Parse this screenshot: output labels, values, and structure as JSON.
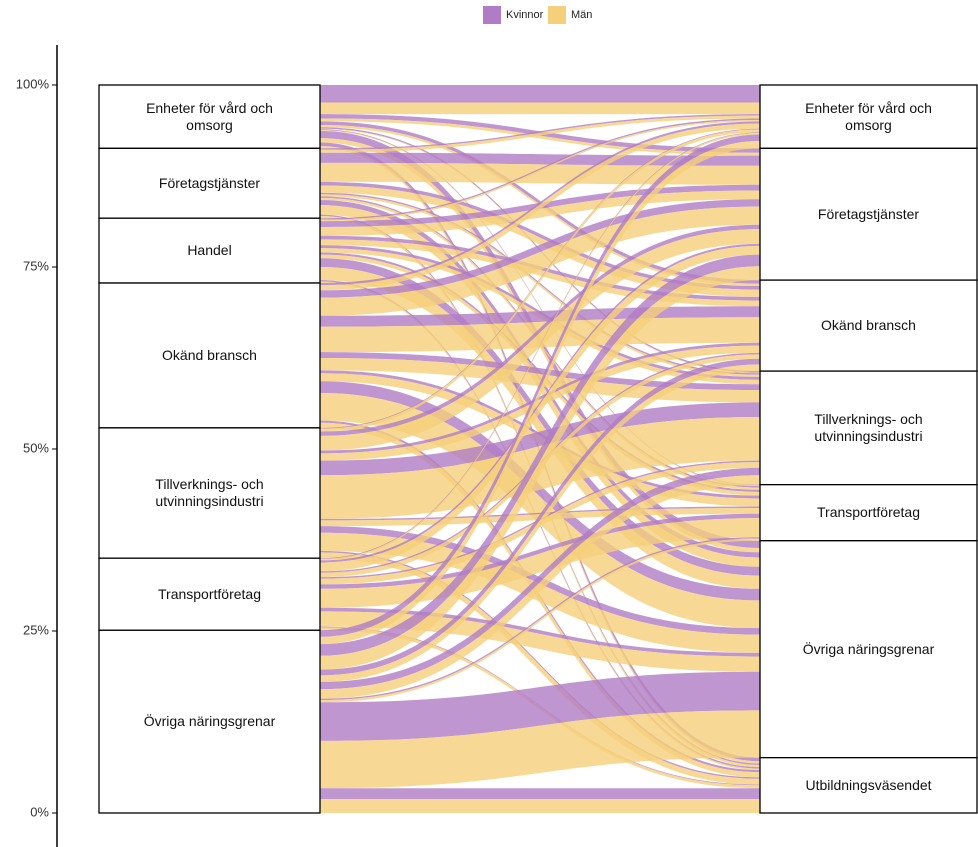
{
  "chart_data": {
    "type": "alluvial",
    "legend": "top",
    "ylim": [
      0,
      100
    ],
    "yticks": [
      {
        "value": 0,
        "label": "0%"
      },
      {
        "value": 25,
        "label": "25%"
      },
      {
        "value": 50,
        "label": "50%"
      },
      {
        "value": 75,
        "label": "75%"
      },
      {
        "value": 100,
        "label": "100%"
      }
    ],
    "left_strata": {
      "names": [
        "Enheter för vård och omsorg",
        "Företagstjänster",
        "Handel",
        "Okänd bransch",
        "Tillverknings- och utvinningsindustri",
        "Transportföretag",
        "Övriga näringsgrenar"
      ],
      "values": [
        8.7,
        9.6,
        8.9,
        19.9,
        17.9,
        9.9,
        25.1
      ]
    },
    "right_strata": {
      "names": [
        "Enheter för vård och omsorg",
        "Företagstjänster",
        "Okänd bransch",
        "Tillverknings- och utvinningsindustri",
        "Transportföretag",
        "Övriga näringsgrenar",
        "Utbildningsväsendet"
      ],
      "values": [
        8.7,
        18.1,
        12.5,
        15.6,
        7.7,
        29.8,
        7.6
      ]
    },
    "series": [
      {
        "name": "Kvinnor",
        "color": "#b07cc6",
        "values": [
          [
            2.4,
            0.6,
            0.5,
            0.2,
            0.1,
            1.0,
            0.5
          ],
          [
            0.2,
            1.4,
            0.5,
            0.2,
            0.2,
            0.7,
            0.2
          ],
          [
            0.2,
            0.8,
            0.5,
            0.4,
            0.3,
            1.2,
            0.2
          ],
          [
            0.3,
            1.0,
            1.5,
            0.8,
            0.4,
            1.6,
            0.3
          ],
          [
            0.1,
            0.6,
            0.4,
            2.0,
            0.2,
            0.9,
            0.2
          ],
          [
            0.1,
            0.3,
            0.2,
            0.2,
            0.6,
            0.5,
            0.1
          ],
          [
            0.9,
            1.6,
            0.8,
            1.0,
            0.2,
            5.3,
            1.5
          ]
        ]
      },
      {
        "name": "Män",
        "color": "#f5d07a",
        "values": [
          [
            1.6,
            0.4,
            0.3,
            0.1,
            0.1,
            0.6,
            0.3
          ],
          [
            0.4,
            2.6,
            1.0,
            0.3,
            0.3,
            1.3,
            0.3
          ],
          [
            0.2,
            1.2,
            0.8,
            0.6,
            0.5,
            1.8,
            0.2
          ],
          [
            0.7,
            2.5,
            3.5,
            1.7,
            1.1,
            3.8,
            0.7
          ],
          [
            0.4,
            2.0,
            1.0,
            6.0,
            0.8,
            2.5,
            0.8
          ],
          [
            0.2,
            1.2,
            0.6,
            0.8,
            2.6,
            2.1,
            0.4
          ],
          [
            1.0,
            1.9,
            0.9,
            1.3,
            0.3,
            6.5,
            1.9
          ]
        ]
      }
    ]
  }
}
